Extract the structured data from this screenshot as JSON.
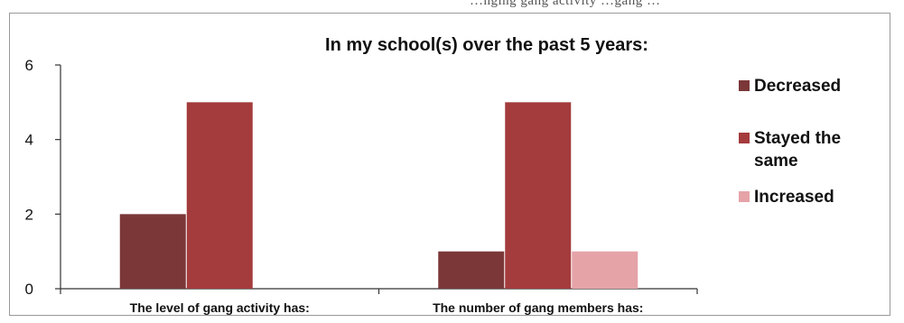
{
  "header_fragment": "…nging gang activity …gang …",
  "chart_data": {
    "type": "bar",
    "title": "In my school(s) over the past 5 years:",
    "categories": [
      "The level of gang activity has:",
      "The number of gang members has:"
    ],
    "series": [
      {
        "name": "Decreased",
        "color": "#7b3738",
        "values": [
          2,
          1
        ]
      },
      {
        "name": "Stayed the same",
        "color": "#a43b3c",
        "values": [
          5,
          5
        ]
      },
      {
        "name": "Increased",
        "color": "#e5a3a8",
        "values": [
          0,
          1
        ]
      }
    ],
    "ylim": [
      0,
      6
    ],
    "yticks": [
      0,
      2,
      4,
      6
    ],
    "grid": false,
    "legend_position": "right"
  }
}
